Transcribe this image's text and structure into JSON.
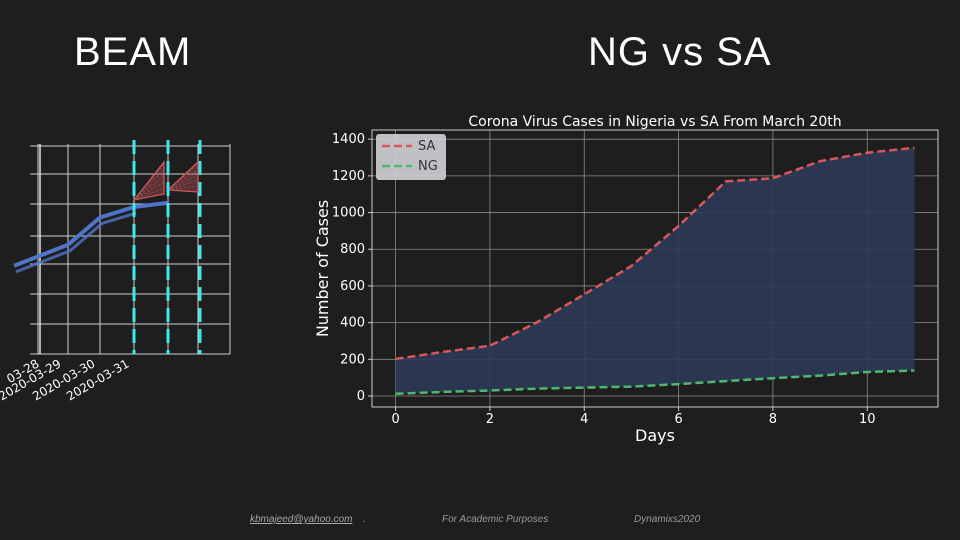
{
  "slide": {
    "left_title": "BEAM",
    "right_title": "NG vs SA"
  },
  "footer": {
    "email": "kbmajeed@yahoo.com",
    "dot": ".",
    "purpose": "For Academic Purposes",
    "brand": "Dynamixs2020"
  },
  "colors": {
    "background": "#1e1e1e",
    "sa_line": "#d9575b",
    "ng_line": "#4fb870",
    "fill": "#2c3a55",
    "beam_line": "#4f74c8",
    "beam_marker": "#3fe8e8",
    "beam_cone": "#d9575b"
  },
  "chart_data": [
    {
      "type": "line",
      "panel": "beam",
      "categories": [
        "2020-03-28",
        "2020-03-29",
        "2020-03-30",
        "2020-03-31"
      ],
      "tick_labels": [
        "03-28",
        "2020-03-29",
        "2020-03-30",
        "2020-03-31"
      ],
      "series": [
        {
          "values": [
            0.42,
            0.52,
            0.65,
            0.7
          ]
        }
      ],
      "grid": true,
      "legend": "none"
    },
    {
      "type": "line",
      "panel": "main",
      "title": "Corona Virus Cases in Nigeria vs SA From March 20th",
      "xlabel": "Days",
      "ylabel": "Number of Cases",
      "x": [
        0,
        1,
        2,
        3,
        4,
        5,
        6,
        7,
        8,
        9,
        10,
        11
      ],
      "series": [
        {
          "name": "SA",
          "values": [
            202,
            240,
            274,
            402,
            554,
            709,
            927,
            1170,
            1187,
            1280,
            1326,
            1353
          ]
        },
        {
          "name": "NG",
          "values": [
            12,
            22,
            30,
            40,
            46,
            51,
            65,
            81,
            97,
            111,
            131,
            139
          ]
        }
      ],
      "xlim": [
        -0.5,
        11.5
      ],
      "ylim": [
        -60,
        1450
      ],
      "xticks": [
        0,
        2,
        4,
        6,
        8,
        10
      ],
      "yticks": [
        0,
        200,
        400,
        600,
        800,
        1000,
        1200,
        1400
      ],
      "fill_between": true,
      "grid": true,
      "legend": "top-left"
    }
  ]
}
